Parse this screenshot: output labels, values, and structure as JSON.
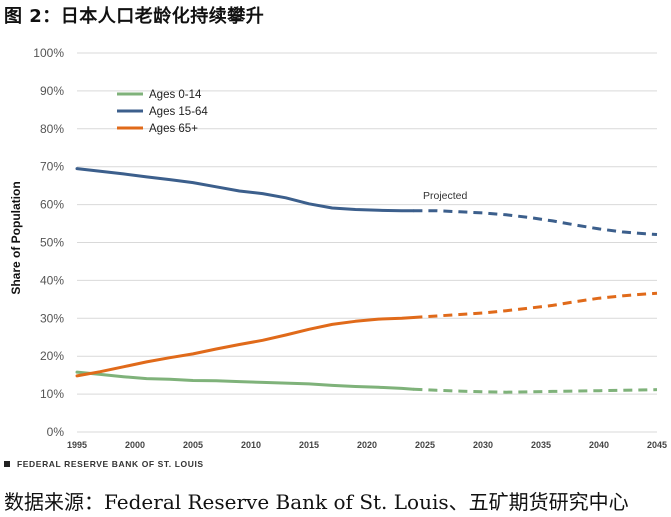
{
  "figure_title": "图 2：日本人口老龄化持续攀升",
  "source_text": "数据来源：Federal Reserve Bank of St. Louis、五矿期货研究中心",
  "footer_note": "FEDERAL RESERVE BANK OF ST. LOUIS",
  "colors": {
    "ages_0_14": "#7fb27a",
    "ages_15_64": "#3c5f8c",
    "ages_65_plus": "#e06a1a",
    "grid": "#d9d9d9",
    "text": "#555555"
  },
  "chart_data": {
    "type": "line",
    "title": "",
    "xlabel": "",
    "ylabel": "Share of Population",
    "xlim": [
      1995,
      2045
    ],
    "ylim": [
      0,
      100
    ],
    "x_ticks": [
      1995,
      2000,
      2005,
      2010,
      2015,
      2020,
      2025,
      2030,
      2035,
      2040,
      2045
    ],
    "y_ticks": [
      "0%",
      "10%",
      "20%",
      "30%",
      "40%",
      "50%",
      "60%",
      "70%",
      "80%",
      "90%",
      "100%"
    ],
    "grid": true,
    "legend_position": "top-left",
    "annotation": "Projected",
    "projection_start": 2024,
    "series": [
      {
        "name": "Ages 0-14",
        "color": "#7fb27a",
        "x": [
          1995,
          1997,
          1999,
          2001,
          2003,
          2005,
          2007,
          2009,
          2011,
          2013,
          2015,
          2017,
          2019,
          2021,
          2023,
          2024,
          2026,
          2028,
          2030,
          2032,
          2034,
          2036,
          2038,
          2040,
          2042,
          2044,
          2045
        ],
        "y": [
          15.8,
          15.2,
          14.6,
          14.1,
          13.9,
          13.6,
          13.5,
          13.3,
          13.1,
          12.9,
          12.7,
          12.3,
          12.0,
          11.8,
          11.5,
          11.3,
          11.0,
          10.8,
          10.6,
          10.5,
          10.6,
          10.7,
          10.8,
          10.9,
          11.0,
          11.1,
          11.2
        ]
      },
      {
        "name": "Ages 15-64",
        "color": "#3c5f8c",
        "x": [
          1995,
          1997,
          1999,
          2001,
          2003,
          2005,
          2007,
          2009,
          2011,
          2013,
          2015,
          2017,
          2019,
          2021,
          2023,
          2024,
          2026,
          2028,
          2030,
          2032,
          2034,
          2036,
          2038,
          2040,
          2042,
          2044,
          2045
        ],
        "y": [
          69.5,
          68.8,
          68.1,
          67.3,
          66.6,
          65.8,
          64.7,
          63.6,
          62.9,
          61.8,
          60.2,
          59.1,
          58.7,
          58.5,
          58.4,
          58.4,
          58.4,
          58.1,
          57.8,
          57.3,
          56.6,
          55.7,
          54.6,
          53.6,
          52.8,
          52.3,
          52.1
        ]
      },
      {
        "name": "Ages 65+",
        "color": "#e06a1a",
        "x": [
          1995,
          1997,
          1999,
          2001,
          2003,
          2005,
          2007,
          2009,
          2011,
          2013,
          2015,
          2017,
          2019,
          2021,
          2023,
          2024,
          2026,
          2028,
          2030,
          2032,
          2034,
          2036,
          2038,
          2040,
          2042,
          2044,
          2045
        ],
        "y": [
          14.8,
          15.9,
          17.2,
          18.5,
          19.6,
          20.6,
          21.9,
          23.1,
          24.2,
          25.6,
          27.1,
          28.4,
          29.2,
          29.8,
          30.0,
          30.2,
          30.6,
          31.0,
          31.4,
          32.0,
          32.7,
          33.4,
          34.4,
          35.3,
          35.9,
          36.4,
          36.6
        ]
      }
    ]
  }
}
